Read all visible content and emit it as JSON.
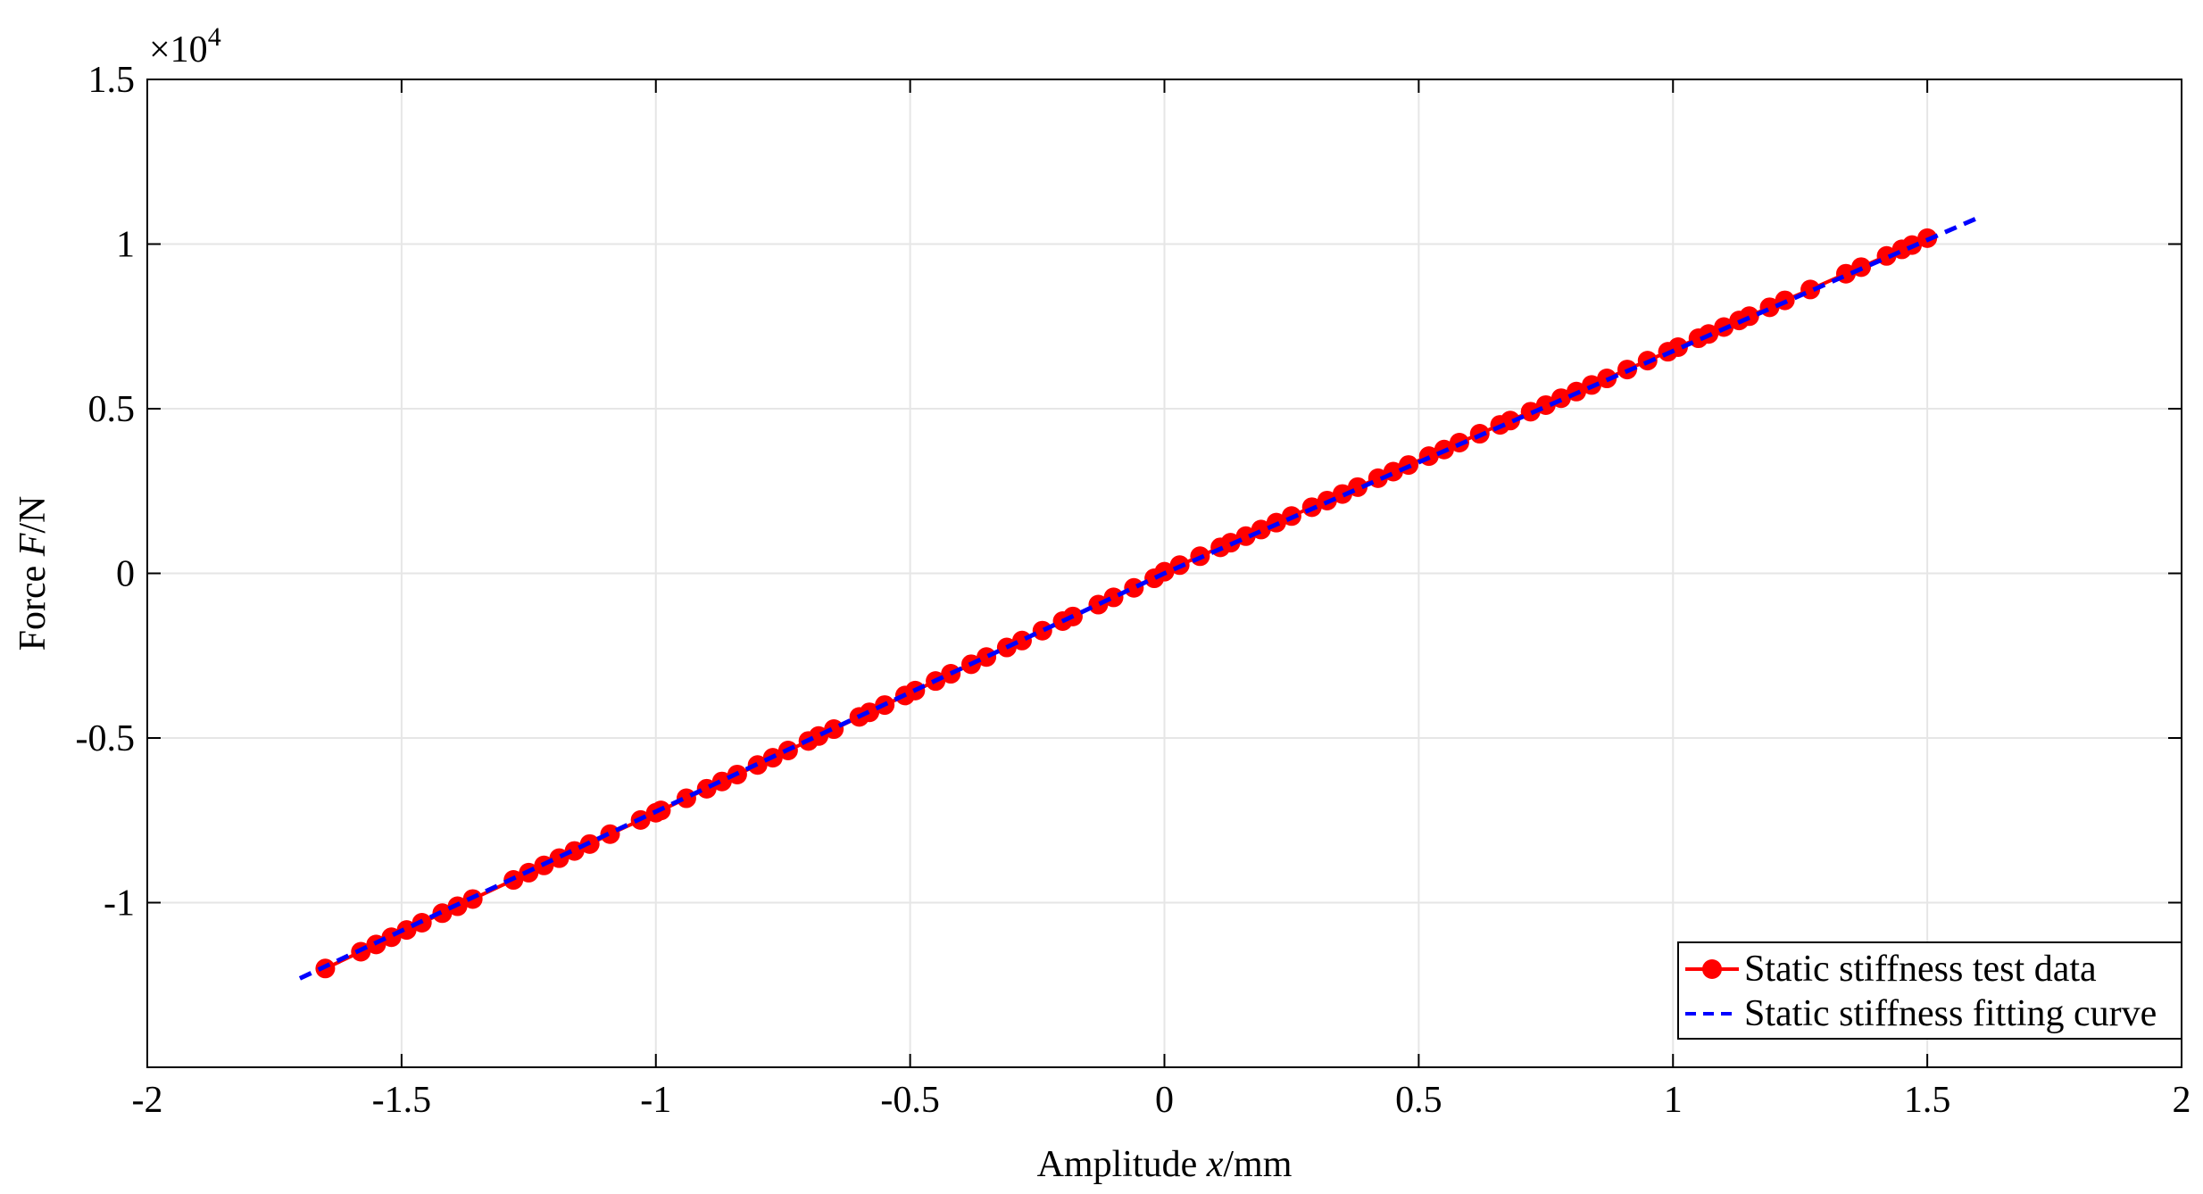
{
  "chart_data": {
    "type": "scatter",
    "xlabel": {
      "text": "Amplitude ",
      "var": "x",
      "unit": "/mm"
    },
    "ylabel": {
      "text": "Force ",
      "var": "F",
      "unit": "/N"
    },
    "y_multiplier": {
      "base": "×10",
      "exp": "4"
    },
    "xlim": [
      -2,
      2
    ],
    "ylim": [
      -1.5,
      1.5
    ],
    "xticks": [
      -2,
      -1.5,
      -1,
      -0.5,
      0,
      0.5,
      1,
      1.5,
      2
    ],
    "yticks": [
      -1,
      -0.5,
      0,
      0.5,
      1,
      1.5
    ],
    "grid": true,
    "legend_position": "lower right",
    "series": [
      {
        "name": "Static stiffness test data",
        "color": "#ff0000",
        "style": "line-marker",
        "x": [
          -1.65,
          -1.58,
          -1.55,
          -1.52,
          -1.49,
          -1.46,
          -1.42,
          -1.39,
          -1.36,
          -1.28,
          -1.25,
          -1.22,
          -1.19,
          -1.16,
          -1.13,
          -1.09,
          -1.03,
          -1.0,
          -0.99,
          -0.94,
          -0.9,
          -0.87,
          -0.84,
          -0.8,
          -0.77,
          -0.74,
          -0.7,
          -0.68,
          -0.65,
          -0.6,
          -0.58,
          -0.55,
          -0.51,
          -0.49,
          -0.45,
          -0.42,
          -0.38,
          -0.35,
          -0.31,
          -0.28,
          -0.24,
          -0.2,
          -0.18,
          -0.13,
          -0.1,
          -0.06,
          -0.02,
          0.0,
          0.03,
          0.07,
          0.11,
          0.13,
          0.16,
          0.19,
          0.22,
          0.25,
          0.29,
          0.32,
          0.35,
          0.38,
          0.42,
          0.45,
          0.48,
          0.52,
          0.55,
          0.58,
          0.62,
          0.66,
          0.68,
          0.72,
          0.75,
          0.78,
          0.81,
          0.84,
          0.87,
          0.91,
          0.95,
          0.99,
          1.01,
          1.05,
          1.07,
          1.1,
          1.13,
          1.15,
          1.19,
          1.22,
          1.27,
          1.34,
          1.37,
          1.42,
          1.45,
          1.47,
          1.5
        ],
        "values": [
          -1.2,
          -1.149,
          -1.127,
          -1.105,
          -1.083,
          -1.061,
          -1.032,
          -1.011,
          -0.989,
          -0.931,
          -0.909,
          -0.887,
          -0.865,
          -0.843,
          -0.822,
          -0.792,
          -0.749,
          -0.727,
          -0.72,
          -0.683,
          -0.654,
          -0.632,
          -0.611,
          -0.582,
          -0.56,
          -0.538,
          -0.509,
          -0.494,
          -0.473,
          -0.436,
          -0.422,
          -0.4,
          -0.371,
          -0.356,
          -0.327,
          -0.305,
          -0.276,
          -0.254,
          -0.225,
          -0.204,
          -0.174,
          -0.145,
          -0.131,
          -0.095,
          -0.073,
          -0.044,
          -0.015,
          0.005,
          0.025,
          0.052,
          0.079,
          0.093,
          0.113,
          0.133,
          0.154,
          0.174,
          0.201,
          0.221,
          0.241,
          0.262,
          0.289,
          0.309,
          0.329,
          0.356,
          0.376,
          0.397,
          0.424,
          0.451,
          0.464,
          0.491,
          0.511,
          0.532,
          0.552,
          0.572,
          0.592,
          0.619,
          0.646,
          0.673,
          0.687,
          0.714,
          0.727,
          0.748,
          0.768,
          0.781,
          0.808,
          0.829,
          0.862,
          0.91,
          0.93,
          0.964,
          0.984,
          0.997,
          1.018
        ]
      },
      {
        "name": "Static stiffness fitting curve",
        "color": "#0000ff",
        "style": "dashed",
        "x": [
          -1.7,
          0,
          1.6
        ],
        "values": [
          -1.23,
          0.0,
          1.08
        ]
      }
    ]
  }
}
